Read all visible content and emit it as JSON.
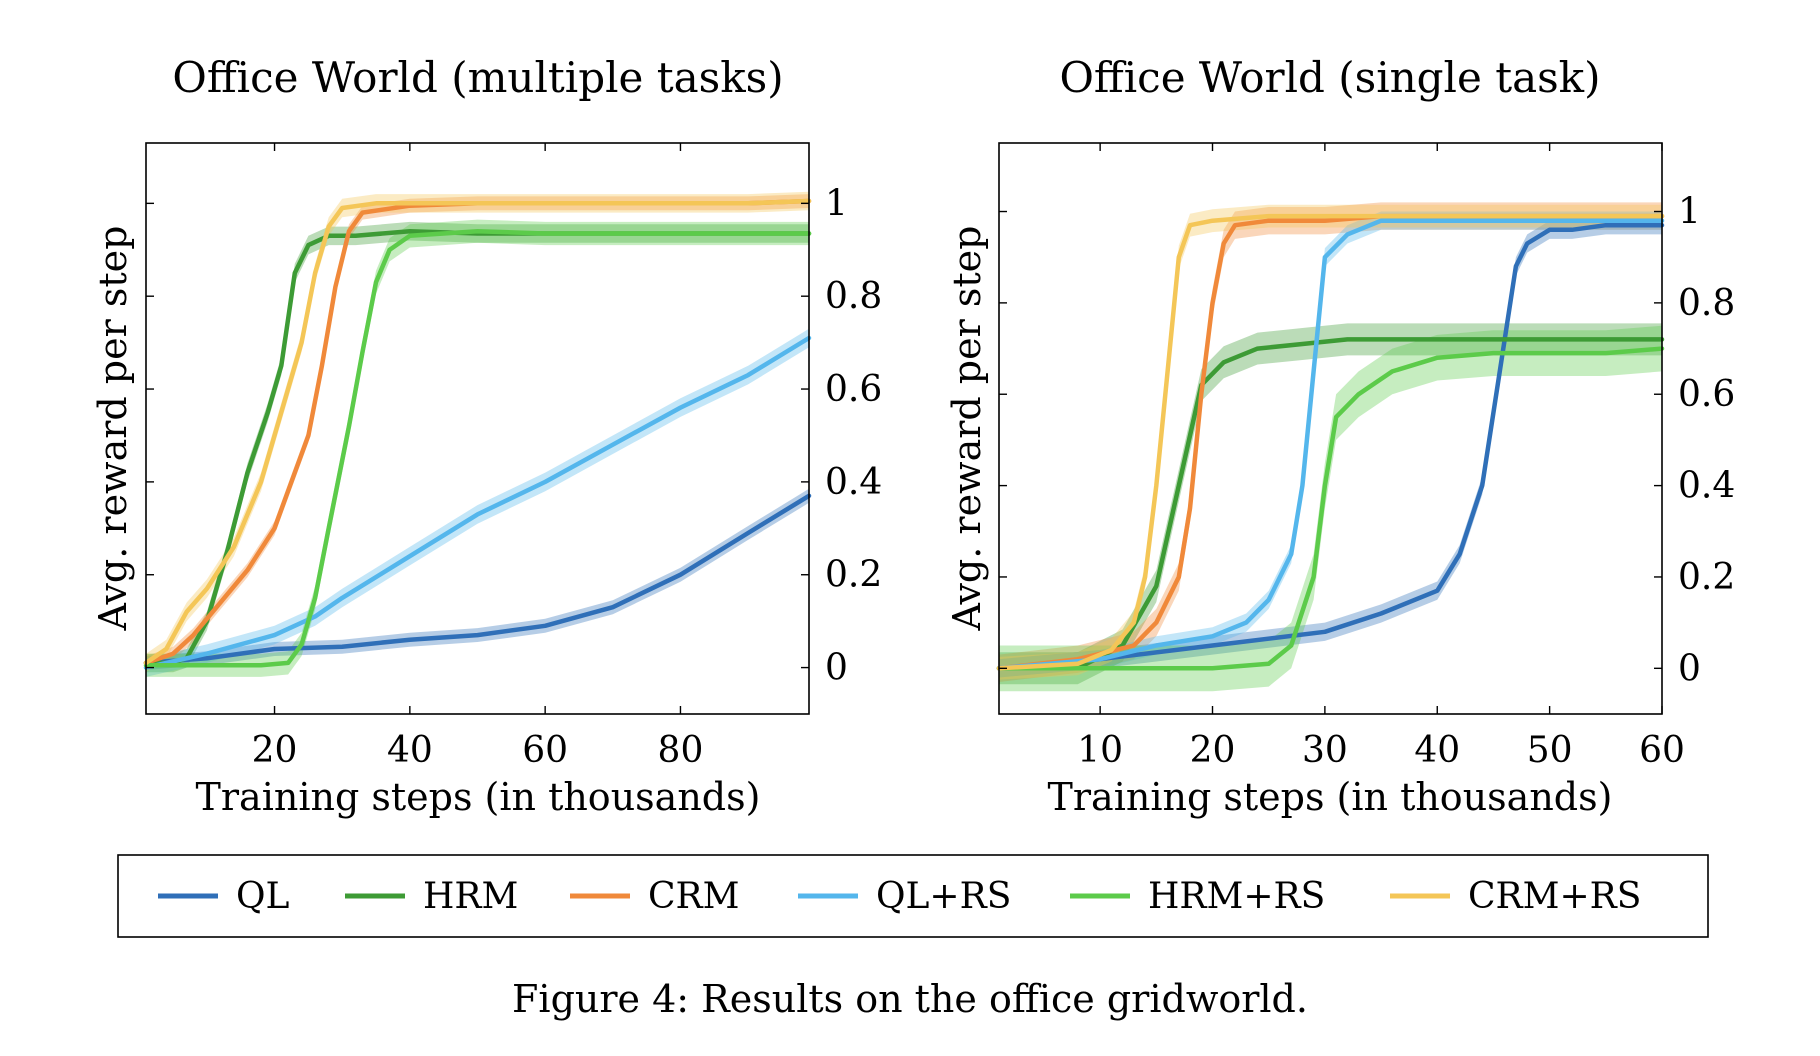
{
  "caption": "Figure 4: Results on the office gridworld.",
  "legend": [
    {
      "name": "QL",
      "color": "#2f6fb8"
    },
    {
      "name": "HRM",
      "color": "#3d9b35"
    },
    {
      "name": "CRM",
      "color": "#f0893a"
    },
    {
      "name": "QL+RS",
      "color": "#54b6ec"
    },
    {
      "name": "HRM+RS",
      "color": "#5ccb4a"
    },
    {
      "name": "CRM+RS",
      "color": "#f4c657"
    }
  ],
  "chart_data": [
    {
      "type": "line",
      "title": "Office World (multiple tasks)",
      "xlabel": "Training steps (in thousands)",
      "ylabel": "Avg. reward per step",
      "xlim": [
        1,
        99
      ],
      "ylim": [
        -0.1,
        1.13
      ],
      "xticks": [
        20,
        40,
        60,
        80
      ],
      "yticks": [
        0,
        0.2,
        0.4,
        0.6,
        0.8,
        1
      ],
      "ytick_labels": [
        "0",
        "0.2",
        "0.4",
        "0.6",
        "0.8",
        "1"
      ],
      "y_axis_side": "right",
      "grid": false,
      "series": [
        {
          "name": "QL",
          "band": 0.015,
          "points": [
            [
              1,
              0.01
            ],
            [
              10,
              0.02
            ],
            [
              20,
              0.04
            ],
            [
              30,
              0.045
            ],
            [
              40,
              0.06
            ],
            [
              50,
              0.07
            ],
            [
              60,
              0.09
            ],
            [
              70,
              0.13
            ],
            [
              80,
              0.2
            ],
            [
              90,
              0.29
            ],
            [
              99,
              0.37
            ]
          ]
        },
        {
          "name": "HRM",
          "band": 0.02,
          "points": [
            [
              1,
              0.01
            ],
            [
              5,
              0.01
            ],
            [
              7,
              0.02
            ],
            [
              10,
              0.1
            ],
            [
              13,
              0.25
            ],
            [
              16,
              0.42
            ],
            [
              19,
              0.55
            ],
            [
              21,
              0.65
            ],
            [
              23,
              0.85
            ],
            [
              25,
              0.91
            ],
            [
              28,
              0.93
            ],
            [
              32,
              0.93
            ],
            [
              40,
              0.94
            ],
            [
              50,
              0.935
            ],
            [
              60,
              0.935
            ],
            [
              70,
              0.935
            ],
            [
              80,
              0.935
            ],
            [
              90,
              0.935
            ],
            [
              99,
              0.935
            ]
          ]
        },
        {
          "name": "CRM",
          "band": 0.015,
          "points": [
            [
              1,
              0.01
            ],
            [
              5,
              0.03
            ],
            [
              8,
              0.07
            ],
            [
              12,
              0.14
            ],
            [
              16,
              0.21
            ],
            [
              20,
              0.3
            ],
            [
              23,
              0.42
            ],
            [
              25,
              0.5
            ],
            [
              27,
              0.65
            ],
            [
              29,
              0.82
            ],
            [
              31,
              0.94
            ],
            [
              33,
              0.98
            ],
            [
              40,
              0.995
            ],
            [
              50,
              1.0
            ],
            [
              60,
              1.0
            ],
            [
              70,
              1.0
            ],
            [
              80,
              1.0
            ],
            [
              90,
              1.0
            ],
            [
              99,
              1.005
            ]
          ]
        },
        {
          "name": "QL+RS",
          "band": 0.02,
          "points": [
            [
              1,
              0.0
            ],
            [
              10,
              0.03
            ],
            [
              20,
              0.07
            ],
            [
              26,
              0.11
            ],
            [
              30,
              0.15
            ],
            [
              40,
              0.24
            ],
            [
              50,
              0.33
            ],
            [
              60,
              0.4
            ],
            [
              70,
              0.48
            ],
            [
              80,
              0.56
            ],
            [
              90,
              0.63
            ],
            [
              99,
              0.71
            ]
          ]
        },
        {
          "name": "HRM+RS",
          "band": 0.025,
          "points": [
            [
              1,
              0.005
            ],
            [
              10,
              0.005
            ],
            [
              18,
              0.005
            ],
            [
              22,
              0.01
            ],
            [
              24,
              0.05
            ],
            [
              26,
              0.15
            ],
            [
              28,
              0.3
            ],
            [
              31,
              0.52
            ],
            [
              33,
              0.68
            ],
            [
              35,
              0.83
            ],
            [
              37,
              0.9
            ],
            [
              40,
              0.93
            ],
            [
              50,
              0.94
            ],
            [
              60,
              0.935
            ],
            [
              70,
              0.935
            ],
            [
              80,
              0.935
            ],
            [
              90,
              0.935
            ],
            [
              99,
              0.935
            ]
          ]
        },
        {
          "name": "CRM+RS",
          "band": 0.02,
          "points": [
            [
              1,
              0.01
            ],
            [
              4,
              0.04
            ],
            [
              7,
              0.12
            ],
            [
              10,
              0.17
            ],
            [
              14,
              0.26
            ],
            [
              18,
              0.4
            ],
            [
              21,
              0.55
            ],
            [
              24,
              0.7
            ],
            [
              26,
              0.85
            ],
            [
              28,
              0.95
            ],
            [
              30,
              0.99
            ],
            [
              35,
              1.0
            ],
            [
              40,
              1.0
            ],
            [
              50,
              1.0
            ],
            [
              60,
              1.0
            ],
            [
              70,
              1.0
            ],
            [
              80,
              1.0
            ],
            [
              90,
              1.0
            ],
            [
              99,
              1.005
            ]
          ]
        }
      ]
    },
    {
      "type": "line",
      "title": "Office World (single task)",
      "xlabel": "Training steps (in thousands)",
      "ylabel": "Avg. reward per step",
      "xlim": [
        1,
        60
      ],
      "ylim": [
        -0.1,
        1.15
      ],
      "xticks": [
        10,
        20,
        30,
        40,
        50,
        60
      ],
      "yticks": [
        0,
        0.2,
        0.4,
        0.6,
        0.8,
        1
      ],
      "ytick_labels": [
        "0",
        "0.2",
        "0.4",
        "0.6",
        "0.8",
        "1"
      ],
      "y_axis_side": "right",
      "grid": false,
      "series": [
        {
          "name": "QL",
          "band": 0.02,
          "points": [
            [
              1,
              0.0
            ],
            [
              10,
              0.02
            ],
            [
              20,
              0.05
            ],
            [
              30,
              0.08
            ],
            [
              35,
              0.12
            ],
            [
              40,
              0.17
            ],
            [
              42,
              0.25
            ],
            [
              44,
              0.4
            ],
            [
              46,
              0.72
            ],
            [
              47,
              0.88
            ],
            [
              48,
              0.93
            ],
            [
              50,
              0.96
            ],
            [
              52,
              0.96
            ],
            [
              55,
              0.97
            ],
            [
              58,
              0.97
            ],
            [
              60,
              0.97
            ]
          ]
        },
        {
          "name": "HRM",
          "band": 0.035,
          "points": [
            [
              1,
              0.0
            ],
            [
              8,
              0.0
            ],
            [
              12,
              0.05
            ],
            [
              15,
              0.18
            ],
            [
              17,
              0.4
            ],
            [
              19,
              0.62
            ],
            [
              21,
              0.67
            ],
            [
              24,
              0.7
            ],
            [
              28,
              0.71
            ],
            [
              32,
              0.72
            ],
            [
              40,
              0.72
            ],
            [
              45,
              0.72
            ],
            [
              50,
              0.72
            ],
            [
              55,
              0.72
            ],
            [
              60,
              0.72
            ]
          ]
        },
        {
          "name": "CRM",
          "band": 0.03,
          "points": [
            [
              1,
              0.0
            ],
            [
              8,
              0.02
            ],
            [
              13,
              0.05
            ],
            [
              15,
              0.1
            ],
            [
              17,
              0.2
            ],
            [
              18,
              0.35
            ],
            [
              19,
              0.6
            ],
            [
              20,
              0.8
            ],
            [
              21,
              0.93
            ],
            [
              22,
              0.97
            ],
            [
              25,
              0.98
            ],
            [
              30,
              0.98
            ],
            [
              35,
              0.99
            ],
            [
              40,
              0.99
            ],
            [
              45,
              0.99
            ],
            [
              50,
              0.99
            ],
            [
              55,
              0.99
            ],
            [
              60,
              0.99
            ]
          ]
        },
        {
          "name": "QL+RS",
          "band": 0.02,
          "points": [
            [
              1,
              0.0
            ],
            [
              10,
              0.02
            ],
            [
              15,
              0.05
            ],
            [
              20,
              0.07
            ],
            [
              23,
              0.1
            ],
            [
              25,
              0.15
            ],
            [
              27,
              0.25
            ],
            [
              28,
              0.4
            ],
            [
              29,
              0.65
            ],
            [
              30,
              0.9
            ],
            [
              32,
              0.95
            ],
            [
              35,
              0.98
            ],
            [
              40,
              0.98
            ],
            [
              50,
              0.98
            ],
            [
              60,
              0.98
            ]
          ]
        },
        {
          "name": "HRM+RS",
          "band": 0.05,
          "points": [
            [
              1,
              0.0
            ],
            [
              20,
              0.0
            ],
            [
              25,
              0.01
            ],
            [
              27,
              0.05
            ],
            [
              29,
              0.2
            ],
            [
              30,
              0.4
            ],
            [
              31,
              0.55
            ],
            [
              33,
              0.6
            ],
            [
              36,
              0.65
            ],
            [
              40,
              0.68
            ],
            [
              45,
              0.69
            ],
            [
              50,
              0.69
            ],
            [
              55,
              0.69
            ],
            [
              60,
              0.7
            ]
          ]
        },
        {
          "name": "CRM+RS",
          "band": 0.025,
          "points": [
            [
              1,
              0.0
            ],
            [
              8,
              0.01
            ],
            [
              11,
              0.04
            ],
            [
              13,
              0.1
            ],
            [
              14,
              0.2
            ],
            [
              15,
              0.4
            ],
            [
              16,
              0.65
            ],
            [
              17,
              0.9
            ],
            [
              18,
              0.97
            ],
            [
              20,
              0.98
            ],
            [
              25,
              0.99
            ],
            [
              30,
              0.99
            ],
            [
              40,
              0.99
            ],
            [
              50,
              0.99
            ],
            [
              60,
              0.99
            ]
          ]
        }
      ]
    }
  ]
}
